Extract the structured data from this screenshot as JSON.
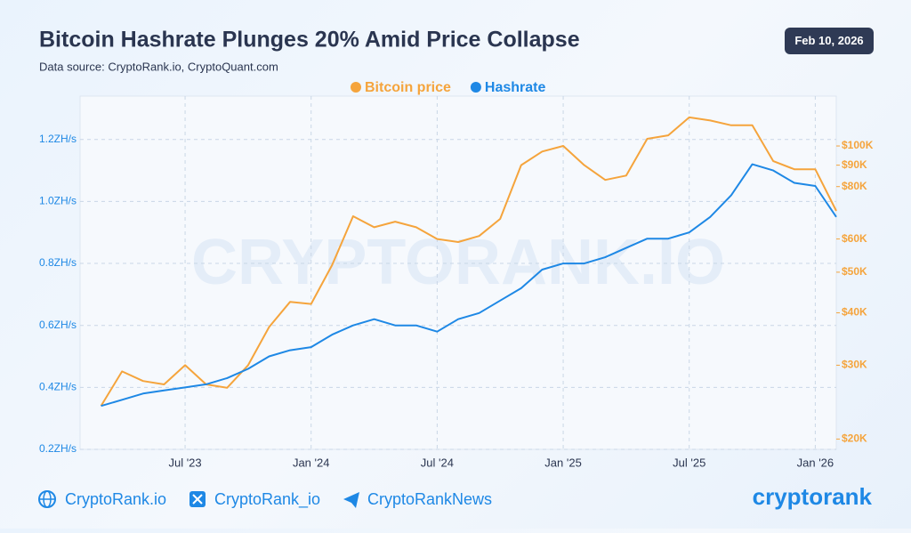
{
  "chart_data": {
    "type": "line",
    "title": "Bitcoin Hashrate Plunges 20% Amid Price Collapse",
    "subtitle": "Data source: CryptoRank.io, CryptoQuant.com",
    "date_badge": "Feb 10, 2026",
    "watermark": "CRYPTORANK.IO",
    "x": [
      "2023-03",
      "2023-04",
      "2023-05",
      "2023-06",
      "2023-07",
      "2023-08",
      "2023-09",
      "2023-10",
      "2023-11",
      "2023-12",
      "2024-01",
      "2024-02",
      "2024-03",
      "2024-04",
      "2024-05",
      "2024-06",
      "2024-07",
      "2024-08",
      "2024-09",
      "2024-10",
      "2024-11",
      "2024-12",
      "2025-01",
      "2025-02",
      "2025-03",
      "2025-04",
      "2025-05",
      "2025-06",
      "2025-07",
      "2025-08",
      "2025-09",
      "2025-10",
      "2025-11",
      "2025-12",
      "2026-01",
      "2026-02"
    ],
    "xlim": [
      "2023-02",
      "2026-02"
    ],
    "xticks": [
      {
        "value": "2023-07",
        "label": "Jul '23"
      },
      {
        "value": "2024-01",
        "label": "Jan '24"
      },
      {
        "value": "2024-07",
        "label": "Jul '24"
      },
      {
        "value": "2025-01",
        "label": "Jan '25"
      },
      {
        "value": "2025-07",
        "label": "Jul '25"
      },
      {
        "value": "2026-01",
        "label": "Jan '26"
      }
    ],
    "series": [
      {
        "name": "Bitcoin price",
        "color": "#f5a43c",
        "axis": "y2",
        "values": [
          24000,
          29000,
          27500,
          27000,
          30000,
          27000,
          26500,
          30000,
          37000,
          42500,
          42000,
          52000,
          68000,
          64000,
          66000,
          64000,
          60000,
          59000,
          61000,
          67000,
          90000,
          97000,
          100000,
          90000,
          83000,
          85000,
          104000,
          106000,
          117000,
          115000,
          112000,
          112000,
          92000,
          88000,
          88000,
          70000
        ]
      },
      {
        "name": "Hashrate",
        "color": "#1e88e5",
        "values": [
          0.34,
          0.36,
          0.38,
          0.39,
          0.4,
          0.41,
          0.43,
          0.46,
          0.5,
          0.52,
          0.53,
          0.57,
          0.6,
          0.62,
          0.6,
          0.6,
          0.58,
          0.62,
          0.64,
          0.68,
          0.72,
          0.78,
          0.8,
          0.8,
          0.82,
          0.85,
          0.88,
          0.88,
          0.9,
          0.95,
          1.02,
          1.12,
          1.1,
          1.06,
          1.05,
          0.95
        ]
      }
    ],
    "ylim": [
      0.2,
      1.34
    ],
    "yticks": [
      {
        "value": 0.2,
        "label": "0.2ZH/s"
      },
      {
        "value": 0.4,
        "label": "0.4ZH/s"
      },
      {
        "value": 0.6,
        "label": "0.6ZH/s"
      },
      {
        "value": 0.8,
        "label": "0.8ZH/s"
      },
      {
        "value": 1.0,
        "label": "1.0ZH/s"
      },
      {
        "value": 1.2,
        "label": "1.2ZH/s"
      }
    ],
    "y2lim": [
      18900,
      131500
    ],
    "y2_log": true,
    "y2ticks": [
      {
        "value": 20000,
        "label": "$20K"
      },
      {
        "value": 30000,
        "label": "$30K"
      },
      {
        "value": 40000,
        "label": "$40K"
      },
      {
        "value": 50000,
        "label": "$50K"
      },
      {
        "value": 60000,
        "label": "$60K"
      },
      {
        "value": 80000,
        "label": "$80K"
      },
      {
        "value": 90000,
        "label": "$90K"
      },
      {
        "value": 100000,
        "label": "$100K"
      }
    ],
    "grid": true,
    "legend": "top",
    "footer": {
      "website": "CryptoRank.io",
      "twitter": "CryptoRank_io",
      "telegram": "CryptoRankNews",
      "logo": "cryptorank"
    }
  }
}
